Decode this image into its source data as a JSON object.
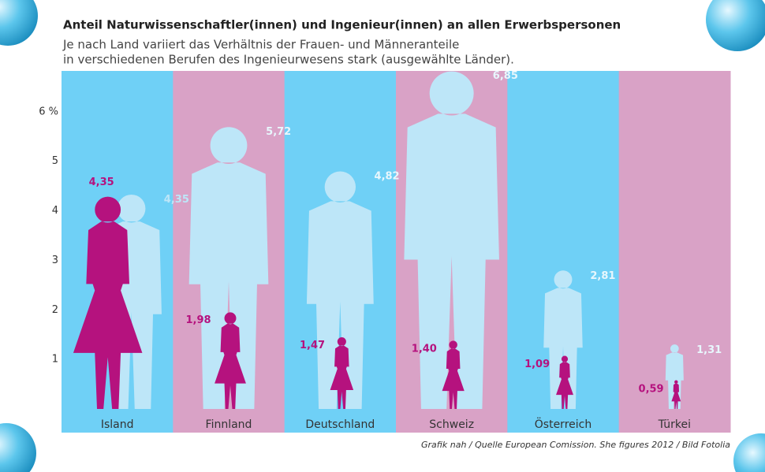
{
  "chart_data": {
    "type": "bar",
    "title": "Anteil Naturwissenschaftler(innen) und Ingenieur(innen) an allen Erwerbspersonen",
    "subtitle": [
      "Je nach Land variiert das Verhältnis der Frauen- und Männeranteile",
      "in verschiedenen Berufen des Ingenieurwesens stark (ausgewählte Länder)."
    ],
    "source": "Grafik nah / Quelle European Comission. She figures 2012 / Bild Fotolia",
    "categories": [
      "Island",
      "Finnland",
      "Deutschland",
      "Schweiz",
      "Österreich",
      "Türkei"
    ],
    "series": [
      {
        "color": "#b5127e",
        "values": [
          4.35,
          1.98,
          1.47,
          1.4,
          1.09,
          0.59
        ],
        "value_labels": [
          "4,35",
          "1,98",
          "1,47",
          "1,40",
          "1,09",
          "0,59"
        ]
      },
      {
        "color": "#bde6f8",
        "values": [
          4.35,
          5.72,
          4.82,
          6.85,
          2.81,
          1.31
        ],
        "value_labels": [
          "4,35",
          "5,72",
          "4,82",
          "6,85",
          "2,81",
          "1,31"
        ]
      }
    ],
    "ylim": [
      0,
      7
    ],
    "yticks": [
      1,
      2,
      3,
      4,
      5,
      {
        "value": 6,
        "label": "6 %"
      }
    ]
  }
}
